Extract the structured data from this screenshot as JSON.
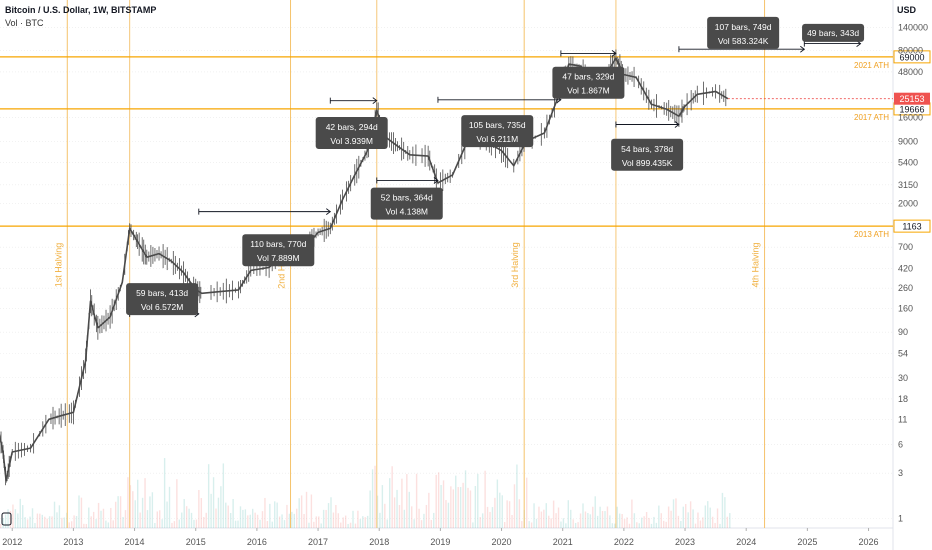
{
  "header": {
    "title": "Bitcoin / U.S. Dollar, 1W, BITSTAMP",
    "volume_label": "Vol · BTC"
  },
  "chart_data": {
    "type": "line",
    "title": "Bitcoin / U.S. Dollar, 1W, BITSTAMP",
    "y_scale": "log",
    "currency": "USD",
    "x_tick_labels": [
      "2012",
      "2013",
      "2014",
      "2015",
      "2016",
      "2017",
      "2018",
      "2019",
      "2020",
      "2021",
      "2022",
      "2023",
      "2024",
      "2025",
      "2026"
    ],
    "x_range": [
      2011.8,
      2026.4
    ],
    "y_tick_labels": [
      "1",
      "3",
      "6",
      "11",
      "18",
      "30",
      "54",
      "90",
      "160",
      "260",
      "420",
      "700",
      "1163",
      "2000",
      "3150",
      "5400",
      "9000",
      "16000",
      "19666",
      "25153",
      "48000",
      "69000",
      "80000",
      "140000"
    ],
    "y_range": [
      0.8,
      160000
    ],
    "price_series": {
      "name": "BTCUSD",
      "x": [
        2011.75,
        2011.85,
        2011.9,
        2012.0,
        2012.3,
        2012.6,
        2012.8,
        2013.0,
        2013.2,
        2013.28,
        2013.4,
        2013.6,
        2013.8,
        2013.92,
        2014.05,
        2014.2,
        2014.4,
        2014.6,
        2014.8,
        2015.0,
        2015.1,
        2015.4,
        2015.7,
        2015.9,
        2016.2,
        2016.5,
        2016.8,
        2017.0,
        2017.2,
        2017.4,
        2017.6,
        2017.8,
        2017.96,
        2018.1,
        2018.3,
        2018.5,
        2018.8,
        2018.96,
        2019.2,
        2019.5,
        2019.8,
        2020.0,
        2020.2,
        2020.4,
        2020.7,
        2020.95,
        2021.1,
        2021.3,
        2021.5,
        2021.7,
        2021.87,
        2022.0,
        2022.2,
        2022.45,
        2022.7,
        2022.9,
        2023.0,
        2023.2,
        2023.5,
        2023.7
      ],
      "y": [
        10,
        5,
        2.5,
        5,
        5.5,
        11,
        12,
        13,
        45,
        190,
        100,
        130,
        300,
        1100,
        800,
        550,
        600,
        500,
        380,
        250,
        230,
        240,
        250,
        400,
        430,
        650,
        700,
        1000,
        1100,
        2200,
        4000,
        7000,
        19000,
        10000,
        8000,
        6500,
        6300,
        3300,
        4000,
        11000,
        8500,
        7200,
        5000,
        9000,
        11000,
        29000,
        58000,
        55000,
        33000,
        44000,
        67000,
        45000,
        42000,
        22000,
        19500,
        16500,
        21000,
        28000,
        30000,
        25153
      ]
    },
    "volume_series": {
      "name": "Vol · BTC",
      "y_range_hint": "bottom"
    },
    "horizontal_levels": [
      {
        "value": 69000,
        "label": "2021 ATH",
        "tag": "69000"
      },
      {
        "value": 19666,
        "label": "2017 ATH",
        "tag": "19666"
      },
      {
        "value": 1163,
        "label": "2013 ATH",
        "tag": "1163"
      }
    ],
    "current_price": {
      "value": 25153,
      "tag": "25153"
    },
    "halvings": [
      {
        "x": 2012.9,
        "label": "1st Halving"
      },
      {
        "x": 2016.55,
        "label": "2nd Halving"
      },
      {
        "x": 2020.37,
        "label": "3rd Halving"
      },
      {
        "x": 2024.3,
        "label": "4th Halving"
      }
    ],
    "extra_vertical_lines": [
      2013.92,
      2017.96,
      2021.87
    ],
    "range_measurements": [
      {
        "x1": 2013.92,
        "x2": 2015.05,
        "y": 140,
        "label1": "59 bars, 413d",
        "label2": "Vol 6.572M",
        "box_x": 2014.45,
        "box_y": 200
      },
      {
        "x1": 2015.05,
        "x2": 2017.2,
        "y": 1650,
        "label1": "110 bars, 770d",
        "label2": "Vol 7.889M",
        "box_x": 2016.35,
        "box_y": 650
      },
      {
        "x1": 2017.2,
        "x2": 2017.96,
        "y": 24000,
        "label1": "42 bars, 294d",
        "label2": "Vol 3.939M",
        "box_x": 2017.55,
        "box_y": 11000
      },
      {
        "x1": 2017.96,
        "x2": 2018.96,
        "y": 3500,
        "label1": "52 bars, 364d",
        "label2": "Vol 4.138M",
        "box_x": 2018.45,
        "box_y": 2000
      },
      {
        "x1": 2018.96,
        "x2": 2020.97,
        "y": 24500,
        "label1": "105 bars, 735d",
        "label2": "Vol 6.211M",
        "box_x": 2019.93,
        "box_y": 11500
      },
      {
        "x1": 2020.97,
        "x2": 2021.87,
        "y": 75000,
        "label1": "47 bars, 329d",
        "label2": "Vol 1.867M",
        "box_x": 2021.42,
        "box_y": 37000
      },
      {
        "x1": 2021.87,
        "x2": 2022.9,
        "y": 13500,
        "label1": "54 bars, 378d",
        "label2": "Vol 899.435K",
        "box_x": 2022.38,
        "box_y": 6500
      },
      {
        "x1": 2022.9,
        "x2": 2024.95,
        "y": 83000,
        "label1": "107 bars, 749d",
        "label2": "Vol 583.324K",
        "box_x": 2023.95,
        "box_y": 123000
      },
      {
        "x1": 2024.95,
        "x2": 2025.87,
        "y": 95000,
        "label1": "49 bars, 343d",
        "label2": "",
        "box_x": 2025.42,
        "box_y": 123000
      }
    ],
    "grid": true,
    "colors": {
      "candle_up": "#26a69a",
      "candle_down": "#ef5350",
      "price_line": "#4a4a4a",
      "level_line": "#f7a600",
      "level_label": "#f0a020",
      "halving_line": "#f5c26b",
      "halving_text": "#f0b040",
      "tooltip_bg": "#4a4a4a",
      "tooltip_text": "#ffffff",
      "current_price_bg": "#ef5350",
      "grid": "#e9e9e9",
      "axis_text": "#555555"
    }
  }
}
